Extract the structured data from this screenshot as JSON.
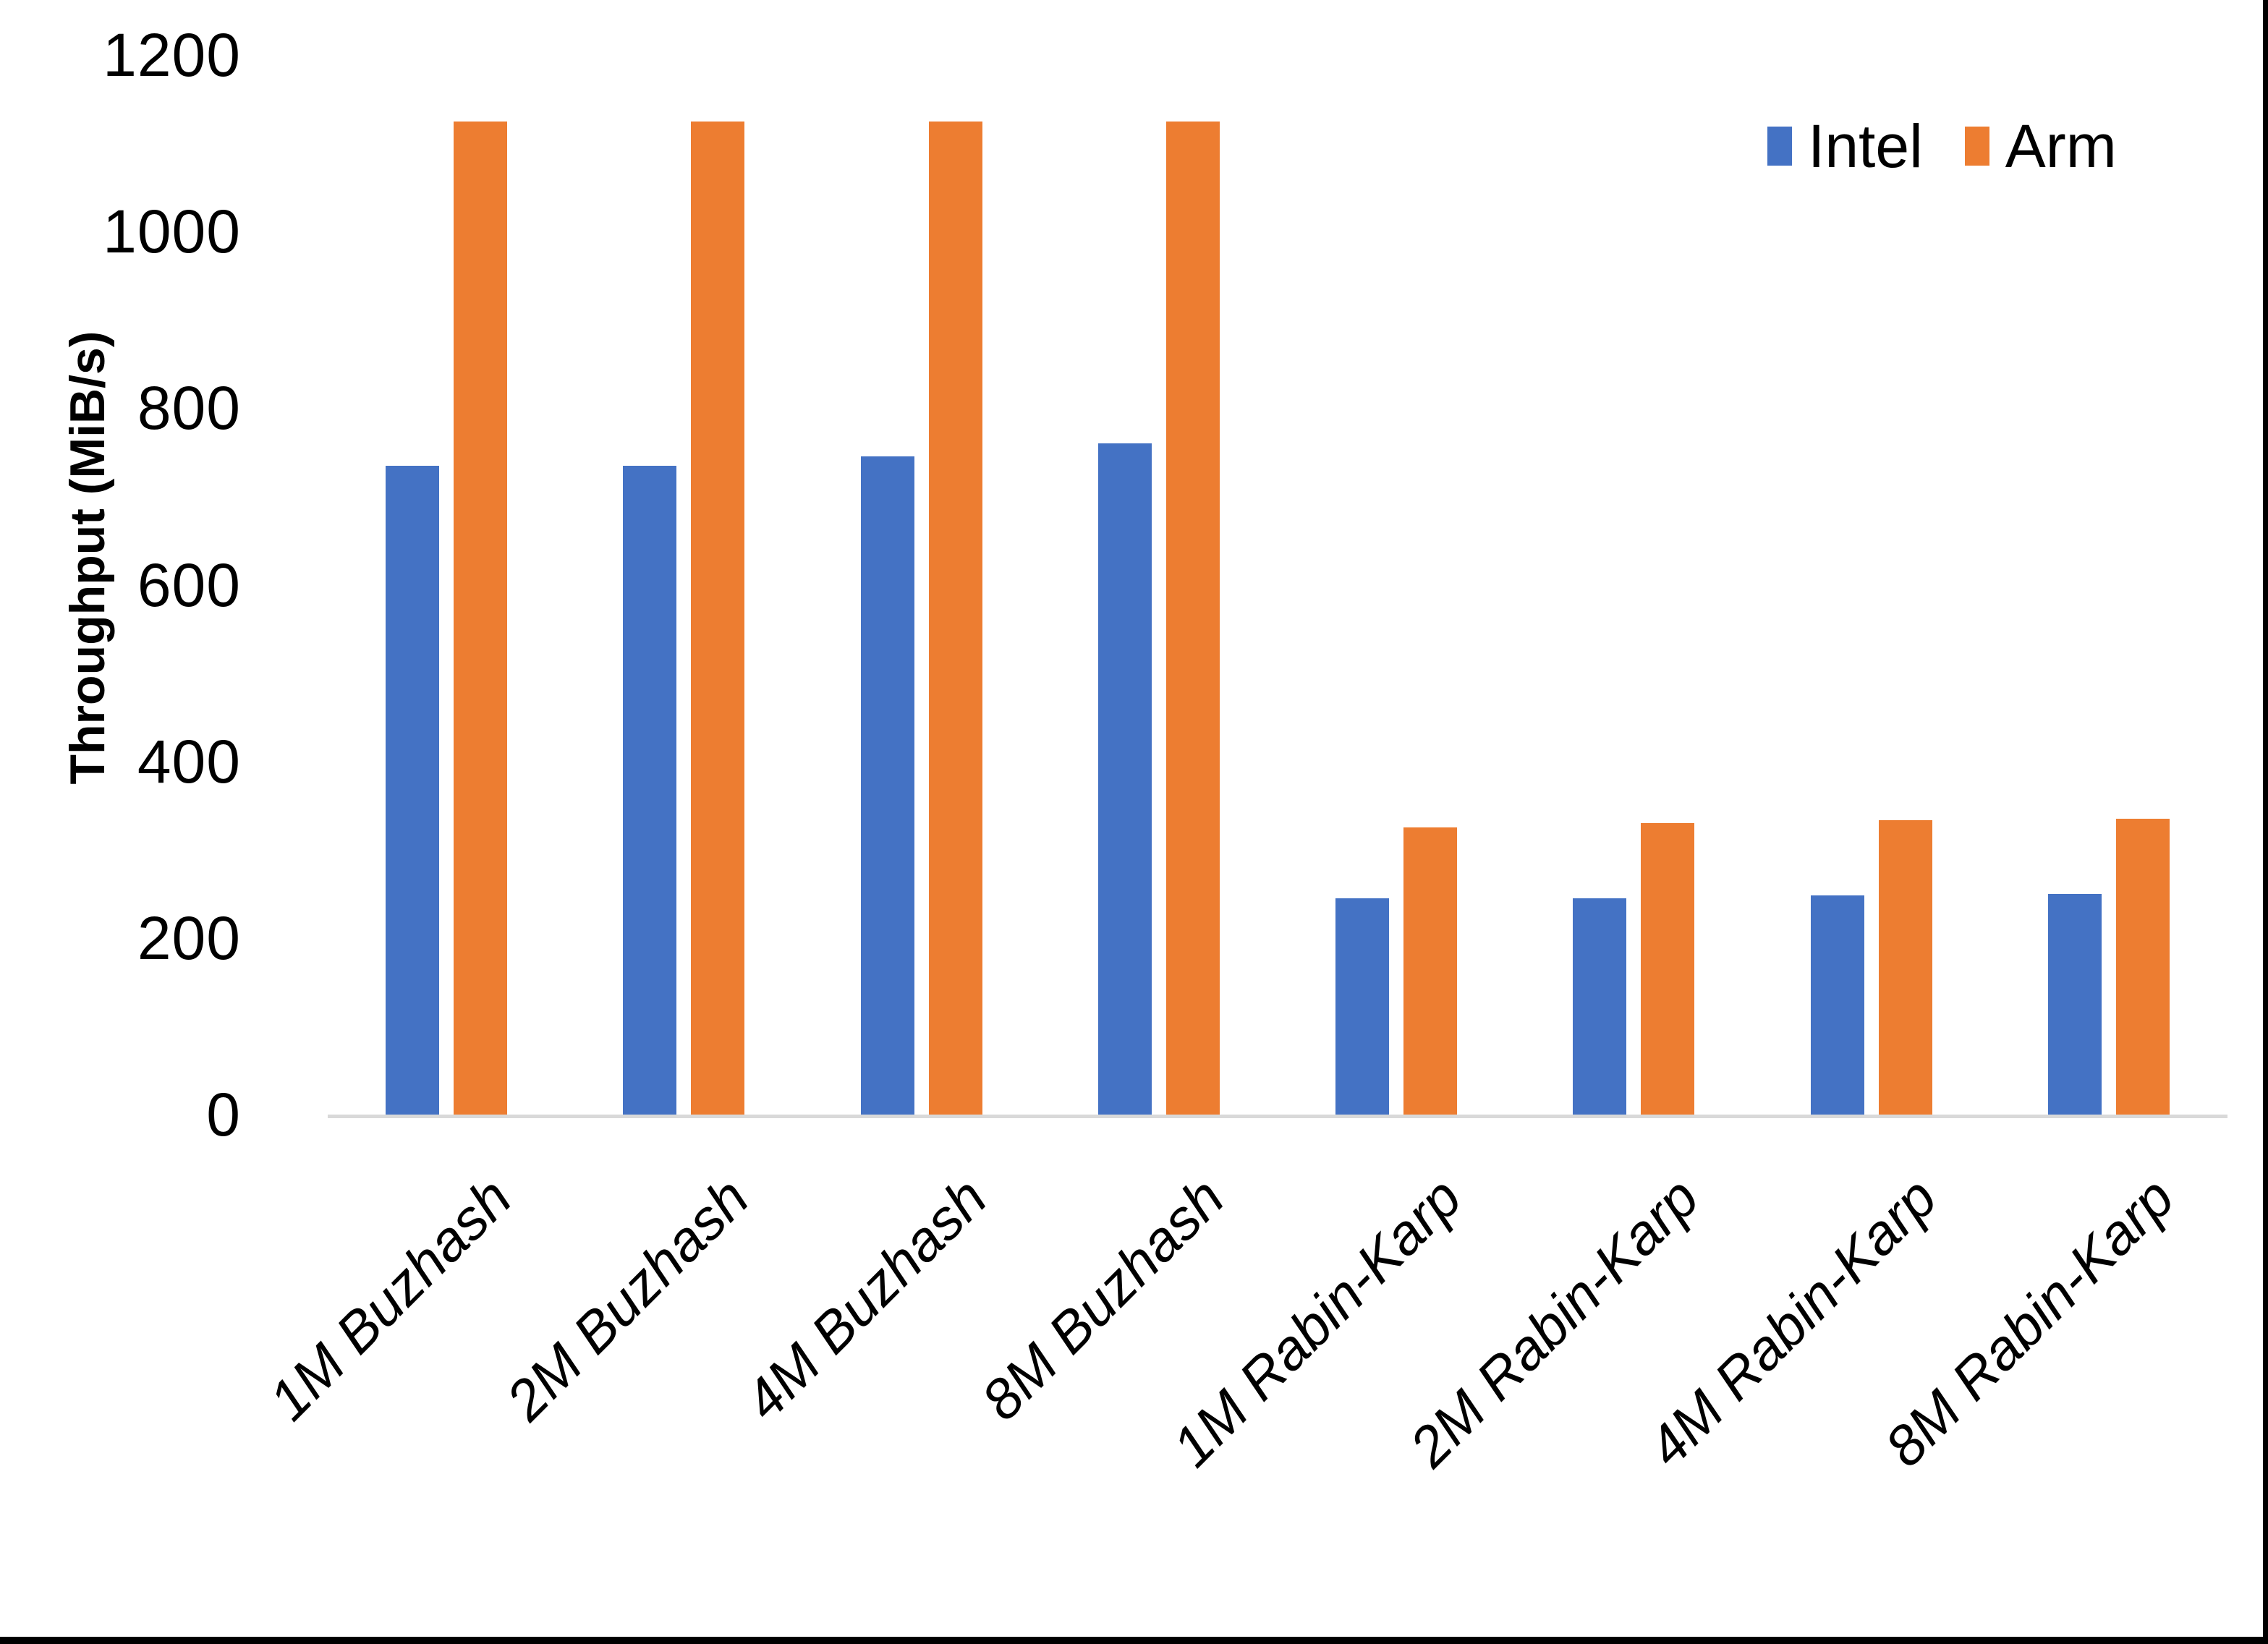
{
  "chart_data": {
    "type": "bar",
    "title": "",
    "xlabel": "",
    "ylabel": "Throughput (MiB/s)",
    "categories": [
      "1M Buzhash",
      "2M Buzhash",
      "4M Buzhash",
      "8M Buzhash",
      "1M Rabin-Karp",
      "2M Rabin-Karp",
      "4M Rabin-Karp",
      "8M Rabin-Karp"
    ],
    "series": [
      {
        "name": "Intel",
        "color": "#4472C4",
        "values": [
          735,
          735,
          745,
          760,
          245,
          245,
          248,
          250
        ]
      },
      {
        "name": "Arm",
        "color": "#ED7D31",
        "values": [
          1125,
          1125,
          1125,
          1125,
          325,
          330,
          333,
          335
        ]
      }
    ],
    "ylim": [
      0,
      1200
    ],
    "yticks": [
      0,
      200,
      400,
      600,
      800,
      1000,
      1200
    ],
    "grid": false,
    "legend_position": "top-right",
    "axis_line_color": "#D9D9D9",
    "category_labels_rotation_deg": 45,
    "category_labels_italic": true
  },
  "frame": {
    "border_color": "#000000"
  }
}
